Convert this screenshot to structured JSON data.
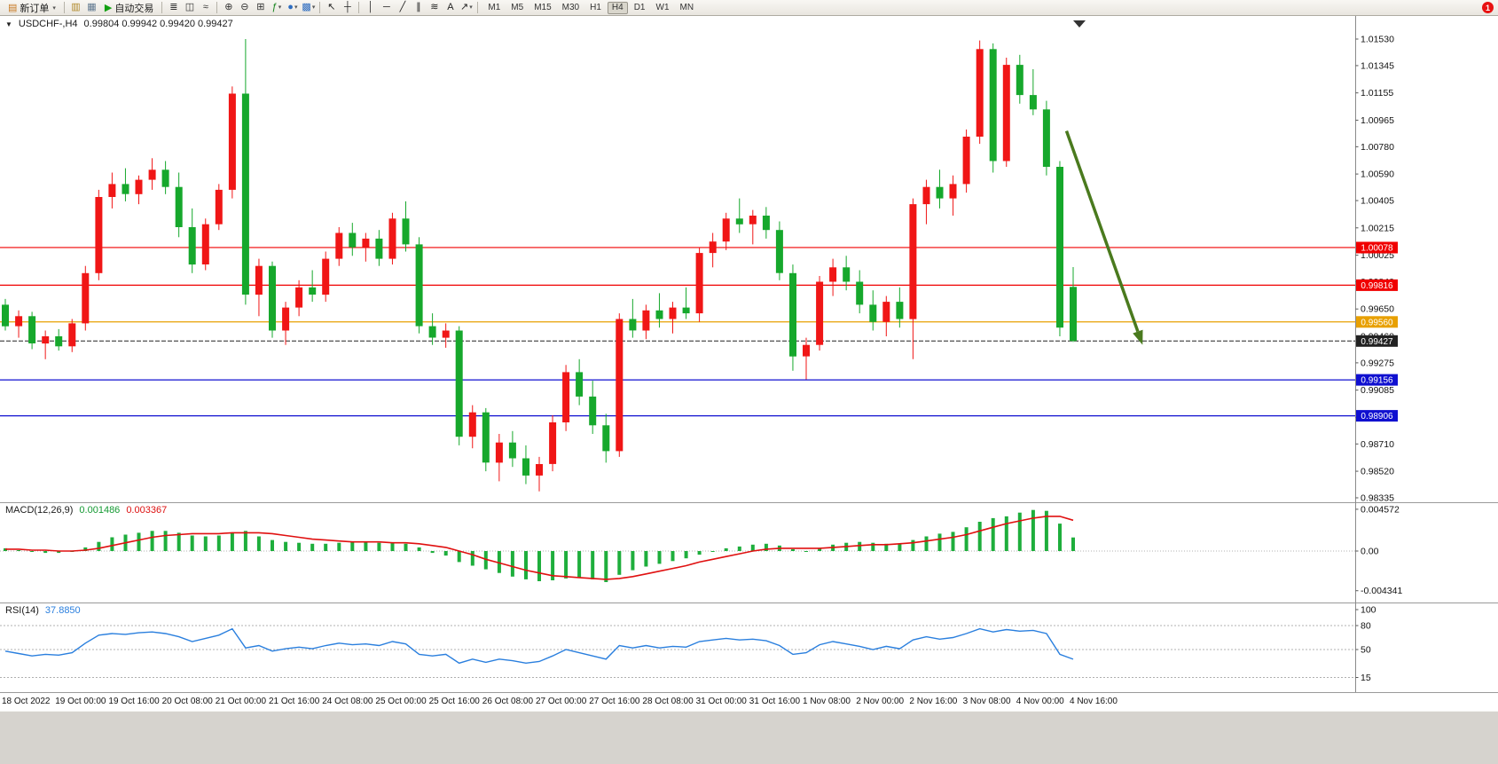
{
  "toolbar": {
    "badge": "1",
    "active_timeframe": "H4",
    "timeframes": [
      "M1",
      "M5",
      "M15",
      "M30",
      "H1",
      "H4",
      "D1",
      "W1",
      "MN"
    ],
    "items": [
      {
        "kind": "labeled",
        "name": "new-order-button",
        "glyph": "▤",
        "glyph_color": "#c87820",
        "label": "新订单",
        "caret": true
      },
      {
        "kind": "sep"
      },
      {
        "kind": "icon",
        "name": "chart-window-icon",
        "glyph": "▥",
        "color": "#b08828"
      },
      {
        "kind": "icon",
        "name": "refresh-icon",
        "glyph": "▦",
        "color": "#607890"
      },
      {
        "kind": "labeled",
        "name": "autotrade-button",
        "glyph": "▶",
        "glyph_color": "#12a012",
        "label": "自动交易"
      },
      {
        "kind": "sep"
      },
      {
        "kind": "icon",
        "name": "bar-chart-icon",
        "glyph": "≣",
        "color": "#333333"
      },
      {
        "kind": "icon",
        "name": "candlestick-chart-icon",
        "glyph": "◫",
        "color": "#333333"
      },
      {
        "kind": "icon",
        "name": "line-chart-icon",
        "glyph": "≈",
        "color": "#333333"
      },
      {
        "kind": "sep"
      },
      {
        "kind": "icon",
        "name": "zoom-in-icon",
        "glyph": "⊕",
        "color": "#333333"
      },
      {
        "kind": "icon",
        "name": "zoom-out-icon",
        "glyph": "⊖",
        "color": "#333333"
      },
      {
        "kind": "icon",
        "name": "tile-windows-icon",
        "glyph": "⊞",
        "color": "#333333"
      },
      {
        "kind": "icon",
        "name": "indicators-icon",
        "glyph": "ƒ",
        "color": "#12831a",
        "caret": true
      },
      {
        "kind": "icon",
        "name": "periods-icon",
        "glyph": "●",
        "color": "#2d6cc0",
        "caret": true
      },
      {
        "kind": "icon",
        "name": "templates-icon",
        "glyph": "▩",
        "color": "#2d6cc0",
        "caret": true
      },
      {
        "kind": "sep"
      },
      {
        "kind": "icon",
        "name": "cursor-icon",
        "glyph": "↖",
        "color": "#222222"
      },
      {
        "kind": "icon",
        "name": "crosshair-icon",
        "glyph": "┼",
        "color": "#222222"
      },
      {
        "kind": "sep"
      },
      {
        "kind": "icon",
        "name": "vertical-line-icon",
        "glyph": "│",
        "color": "#222222"
      },
      {
        "kind": "icon",
        "name": "horizontal-line-icon",
        "glyph": "─",
        "color": "#222222"
      },
      {
        "kind": "icon",
        "name": "trendline-icon",
        "glyph": "╱",
        "color": "#222222"
      },
      {
        "kind": "icon",
        "name": "channel-icon",
        "glyph": "∥",
        "color": "#222222"
      },
      {
        "kind": "icon",
        "name": "fibonacci-icon",
        "glyph": "≋",
        "color": "#222222"
      },
      {
        "kind": "icon",
        "name": "text-icon",
        "glyph": "A",
        "color": "#222222"
      },
      {
        "kind": "icon",
        "name": "arrows-icon",
        "glyph": "↗",
        "color": "#222222",
        "caret": true
      },
      {
        "kind": "sep"
      }
    ]
  },
  "chart": {
    "marker": "▼",
    "header_symbol": "USDCHF-,H4",
    "header_ohlc": "0.99804 0.99942 0.99420 0.99427"
  },
  "chart_data": [
    {
      "type": "candlestick",
      "symbol": "USDCHF-",
      "timeframe": "H4",
      "up_color": "#f01616",
      "down_color": "#16a82c",
      "ylim": [
        0.98335,
        1.0153
      ],
      "price_axis": [
        "1.01530",
        "1.01345",
        "1.01155",
        "1.00965",
        "1.00780",
        "1.00590",
        "1.00405",
        "1.00215",
        "1.00025",
        "0.99840",
        "0.99650",
        "0.99460",
        "0.99275",
        "0.99085",
        "0.98895",
        "0.98710",
        "0.98520",
        "0.98335"
      ],
      "hlines": [
        {
          "price": 1.00078,
          "label": "1.00078",
          "color": "#f00000",
          "style": "solid"
        },
        {
          "price": 0.99816,
          "label": "0.99816",
          "color": "#f00000",
          "style": "solid"
        },
        {
          "price": 0.9956,
          "label": "0.99560",
          "color": "#e8a000",
          "style": "solid"
        },
        {
          "price": 0.99427,
          "label": "0.99427",
          "color": "#222222",
          "style": "current"
        },
        {
          "price": 0.99156,
          "label": "0.99156",
          "color": "#1010d0",
          "style": "solid"
        },
        {
          "price": 0.98906,
          "label": "0.98906",
          "color": "#1010d0",
          "style": "solid"
        }
      ],
      "arrow": {
        "from": {
          "t": 79.5,
          "p": 1.0089
        },
        "to": {
          "t": 85.2,
          "p": 0.994
        },
        "color": "#4a7a1e"
      },
      "ohlc": [
        [
          0.9968,
          0.9972,
          0.995,
          0.9953
        ],
        [
          0.9953,
          0.9964,
          0.9945,
          0.996
        ],
        [
          0.996,
          0.9963,
          0.9937,
          0.9941
        ],
        [
          0.9941,
          0.995,
          0.993,
          0.9946
        ],
        [
          0.9946,
          0.9951,
          0.9936,
          0.9939
        ],
        [
          0.9939,
          0.9958,
          0.9935,
          0.9955
        ],
        [
          0.9955,
          0.9995,
          0.995,
          0.999
        ],
        [
          0.999,
          1.0048,
          0.9985,
          1.0043
        ],
        [
          1.0043,
          1.006,
          1.0035,
          1.0052
        ],
        [
          1.0052,
          1.0063,
          1.004,
          1.0045
        ],
        [
          1.0045,
          1.0058,
          1.0038,
          1.0055
        ],
        [
          1.0055,
          1.007,
          1.0048,
          1.0062
        ],
        [
          1.0062,
          1.0068,
          1.0045,
          1.005
        ],
        [
          1.005,
          1.006,
          1.0015,
          1.0022
        ],
        [
          1.0022,
          1.0035,
          0.999,
          0.9996
        ],
        [
          0.9996,
          1.0028,
          0.9992,
          1.0024
        ],
        [
          1.0024,
          1.0052,
          1.002,
          1.0048
        ],
        [
          1.0048,
          1.012,
          1.0042,
          1.0115
        ],
        [
          1.0115,
          1.0153,
          0.9968,
          0.9975
        ],
        [
          0.9975,
          1.0,
          0.996,
          0.9995
        ],
        [
          0.9995,
          0.9998,
          0.9945,
          0.995
        ],
        [
          0.995,
          0.997,
          0.994,
          0.9966
        ],
        [
          0.9966,
          0.9985,
          0.996,
          0.998
        ],
        [
          0.998,
          0.9992,
          0.997,
          0.9975
        ],
        [
          0.9975,
          1.0005,
          0.997,
          1.0
        ],
        [
          1.0,
          1.0022,
          0.9995,
          1.0018
        ],
        [
          1.0018,
          1.0025,
          1.0002,
          1.0008
        ],
        [
          1.0008,
          1.0018,
          0.9998,
          1.0014
        ],
        [
          1.0014,
          1.002,
          0.9995,
          1.0
        ],
        [
          1.0,
          1.0032,
          0.9996,
          1.0028
        ],
        [
          1.0028,
          1.004,
          1.0005,
          1.001
        ],
        [
          1.001,
          1.0015,
          0.9948,
          0.9953
        ],
        [
          0.9953,
          0.9962,
          0.994,
          0.9945
        ],
        [
          0.9945,
          0.9955,
          0.9938,
          0.995
        ],
        [
          0.995,
          0.9953,
          0.987,
          0.9876
        ],
        [
          0.9876,
          0.9898,
          0.9868,
          0.9893
        ],
        [
          0.9893,
          0.9896,
          0.9852,
          0.9858
        ],
        [
          0.9858,
          0.9878,
          0.9845,
          0.9872
        ],
        [
          0.9872,
          0.988,
          0.9855,
          0.9861
        ],
        [
          0.9861,
          0.987,
          0.9843,
          0.9849
        ],
        [
          0.9849,
          0.9862,
          0.9838,
          0.9857
        ],
        [
          0.9857,
          0.9891,
          0.9852,
          0.9886
        ],
        [
          0.9886,
          0.9926,
          0.988,
          0.9921
        ],
        [
          0.9921,
          0.993,
          0.9898,
          0.9904
        ],
        [
          0.9904,
          0.9915,
          0.9878,
          0.9884
        ],
        [
          0.9884,
          0.9892,
          0.9858,
          0.9866
        ],
        [
          0.9866,
          0.9962,
          0.9862,
          0.9958
        ],
        [
          0.9958,
          0.9972,
          0.9945,
          0.995
        ],
        [
          0.995,
          0.9968,
          0.9944,
          0.9964
        ],
        [
          0.9964,
          0.9976,
          0.9952,
          0.9958
        ],
        [
          0.9958,
          0.997,
          0.9948,
          0.9966
        ],
        [
          0.9966,
          0.998,
          0.9958,
          0.9962
        ],
        [
          0.9962,
          1.0008,
          0.9956,
          1.0004
        ],
        [
          1.0004,
          1.0018,
          0.9994,
          1.0012
        ],
        [
          1.0012,
          1.0032,
          1.0006,
          1.0028
        ],
        [
          1.0028,
          1.0042,
          1.0018,
          1.0024
        ],
        [
          1.0024,
          1.0034,
          1.001,
          1.003
        ],
        [
          1.003,
          1.0036,
          1.0014,
          1.002
        ],
        [
          1.002,
          1.0026,
          0.9985,
          0.999
        ],
        [
          0.999,
          0.9996,
          0.9922,
          0.9932
        ],
        [
          0.9932,
          0.9945,
          0.9916,
          0.994
        ],
        [
          0.994,
          0.9988,
          0.9936,
          0.9984
        ],
        [
          0.9984,
          1.0,
          0.9974,
          0.9994
        ],
        [
          0.9994,
          1.0002,
          0.9978,
          0.9984
        ],
        [
          0.9984,
          0.9992,
          0.9962,
          0.9968
        ],
        [
          0.9968,
          0.9978,
          0.995,
          0.9956
        ],
        [
          0.9956,
          0.9974,
          0.9946,
          0.997
        ],
        [
          0.997,
          0.998,
          0.9952,
          0.9958
        ],
        [
          0.9958,
          1.0042,
          0.993,
          1.0038
        ],
        [
          1.0038,
          1.0055,
          1.0024,
          1.005
        ],
        [
          1.005,
          1.0062,
          1.0035,
          1.0042
        ],
        [
          1.0042,
          1.0058,
          1.003,
          1.0052
        ],
        [
          1.0052,
          1.009,
          1.0046,
          1.0085
        ],
        [
          1.0085,
          1.0152,
          1.008,
          1.0146
        ],
        [
          1.0146,
          1.015,
          1.006,
          1.0068
        ],
        [
          1.0068,
          1.014,
          1.0064,
          1.0135
        ],
        [
          1.0135,
          1.0142,
          1.0108,
          1.0114
        ],
        [
          1.0114,
          1.0132,
          1.01,
          1.0104
        ],
        [
          1.0104,
          1.011,
          1.0058,
          1.0064
        ],
        [
          1.0064,
          1.0068,
          0.9946,
          0.9952
        ],
        [
          0.99804,
          0.99942,
          0.9942,
          0.99427
        ]
      ]
    },
    {
      "type": "bar",
      "label": "MACD(12,26,9)",
      "value_main": "0.001486",
      "value_signal": "0.003367",
      "bar_color": "#1eae3c",
      "signal_color": "#e01010",
      "axis": [
        "0.004572",
        "0.00",
        "-0.004341"
      ],
      "values": [
        0.0003,
        0.0001,
        -0.0001,
        -0.0002,
        -0.0002,
        0.0,
        0.0004,
        0.001,
        0.0015,
        0.0018,
        0.002,
        0.0022,
        0.0022,
        0.002,
        0.0017,
        0.0016,
        0.0017,
        0.002,
        0.0022,
        0.0016,
        0.0012,
        0.001,
        0.0009,
        0.0008,
        0.0008,
        0.0009,
        0.001,
        0.001,
        0.0009,
        0.0009,
        0.0008,
        0.0004,
        -0.0002,
        -0.0005,
        -0.0012,
        -0.0016,
        -0.002,
        -0.0024,
        -0.0028,
        -0.0031,
        -0.0033,
        -0.0032,
        -0.003,
        -0.0029,
        -0.0031,
        -0.0034,
        -0.0026,
        -0.0021,
        -0.0017,
        -0.0014,
        -0.0011,
        -0.0008,
        -0.0004,
        0.0,
        0.0003,
        0.0005,
        0.0007,
        0.0008,
        0.0006,
        0.0002,
        0.0,
        0.0003,
        0.0007,
        0.0009,
        0.001,
        0.0009,
        0.0008,
        0.0008,
        0.0012,
        0.0016,
        0.0019,
        0.0021,
        0.0026,
        0.0032,
        0.0036,
        0.0038,
        0.0042,
        0.0045,
        0.0044,
        0.003,
        0.001486
      ],
      "signal": [
        0.0002,
        0.0002,
        0.0001,
        0.0001,
        0.0,
        0.0,
        0.0001,
        0.0003,
        0.0006,
        0.0009,
        0.0012,
        0.0015,
        0.0017,
        0.0018,
        0.0019,
        0.0019,
        0.0019,
        0.002,
        0.002,
        0.002,
        0.0019,
        0.0017,
        0.0015,
        0.0013,
        0.0012,
        0.0011,
        0.001,
        0.001,
        0.001,
        0.0009,
        0.0009,
        0.0008,
        0.0006,
        0.0004,
        0.0,
        -0.0004,
        -0.0009,
        -0.0013,
        -0.0017,
        -0.0021,
        -0.0024,
        -0.0027,
        -0.0028,
        -0.0029,
        -0.003,
        -0.0031,
        -0.003,
        -0.0028,
        -0.0025,
        -0.0022,
        -0.0019,
        -0.0016,
        -0.0012,
        -0.0009,
        -0.0006,
        -0.0003,
        0.0,
        0.0002,
        0.0003,
        0.0003,
        0.0003,
        0.0003,
        0.0004,
        0.0005,
        0.0006,
        0.0007,
        0.0007,
        0.0008,
        0.0009,
        0.0011,
        0.0013,
        0.0015,
        0.0018,
        0.0022,
        0.0026,
        0.003,
        0.0033,
        0.0036,
        0.0038,
        0.0038,
        0.003367
      ]
    },
    {
      "type": "line",
      "label": "RSI(14)",
      "value": "37.8850",
      "line_color": "#2a7fde",
      "levels": [
        80,
        50,
        15
      ],
      "axis_labels": [
        "100",
        "80",
        "50",
        "15"
      ],
      "ylim": [
        0,
        100
      ],
      "values": [
        48,
        45,
        42,
        44,
        43,
        46,
        58,
        68,
        70,
        69,
        71,
        72,
        70,
        66,
        60,
        64,
        68,
        76,
        52,
        55,
        48,
        51,
        53,
        51,
        55,
        58,
        56,
        57,
        55,
        60,
        57,
        44,
        42,
        44,
        33,
        38,
        34,
        38,
        36,
        33,
        35,
        42,
        50,
        46,
        42,
        38,
        55,
        52,
        55,
        52,
        54,
        53,
        60,
        62,
        64,
        62,
        63,
        61,
        55,
        44,
        46,
        56,
        60,
        57,
        54,
        50,
        54,
        51,
        62,
        66,
        63,
        65,
        70,
        76,
        72,
        75,
        73,
        74,
        70,
        44,
        37.885
      ]
    }
  ],
  "time_axis": [
    "18 Oct 2022",
    "19 Oct 00:00",
    "19 Oct 16:00",
    "20 Oct 08:00",
    "21 Oct 00:00",
    "21 Oct 16:00",
    "24 Oct 08:00",
    "25 Oct 00:00",
    "25 Oct 16:00",
    "26 Oct 08:00",
    "27 Oct 00:00",
    "27 Oct 16:00",
    "28 Oct 08:00",
    "31 Oct 00:00",
    "31 Oct 16:00",
    "1 Nov 08:00",
    "2 Nov 00:00",
    "2 Nov 16:00",
    "3 Nov 08:00",
    "4 Nov 00:00",
    "4 Nov 16:00"
  ]
}
